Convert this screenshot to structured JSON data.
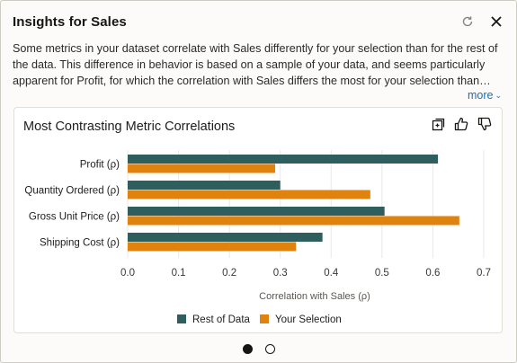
{
  "panel": {
    "title": "Insights for Sales",
    "description": "Some metrics in your dataset correlate with Sales differently for your selection than for the rest of the data. This difference in behavior is based on a sample of your data, and seems particularly apparent for Profit, for which the correlation with Sales differs the most for your selection than…",
    "more_label": "more",
    "icons": [
      "refresh-icon",
      "close-icon"
    ]
  },
  "card": {
    "title": "Most Contrasting Metric Correlations",
    "icons": [
      "expand-icon",
      "thumbs-up-icon",
      "thumbs-down-icon"
    ]
  },
  "pager": {
    "pages": 2,
    "active": 0
  },
  "colors": {
    "rest": "#2e5f5e",
    "selection": "#e0830e",
    "link": "#1a6fb3"
  },
  "chart_data": {
    "type": "bar",
    "orientation": "horizontal",
    "categories": [
      "Profit (ρ)",
      "Quantity Ordered (ρ)",
      "Gross Unit Price (ρ)",
      "Shipping Cost (ρ)"
    ],
    "series": [
      {
        "name": "Rest of Data",
        "values": [
          0.61,
          0.3,
          0.505,
          0.383
        ]
      },
      {
        "name": "Your Selection",
        "values": [
          0.29,
          0.477,
          0.652,
          0.331
        ]
      }
    ],
    "xlabel": "Correlation with Sales (ρ)",
    "xlim": [
      0.0,
      0.7
    ],
    "xticks": [
      "0.0",
      "0.1",
      "0.2",
      "0.3",
      "0.4",
      "0.5",
      "0.6",
      "0.7"
    ],
    "grid": true,
    "legend": "bottom"
  }
}
